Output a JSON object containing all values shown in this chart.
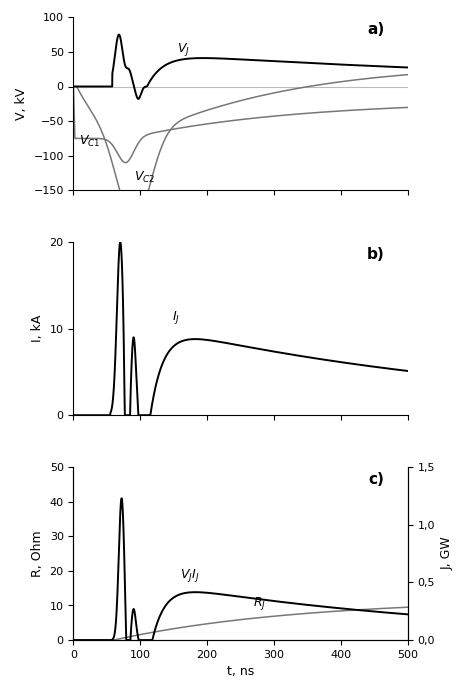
{
  "xlim": [
    0,
    500
  ],
  "panel_a": {
    "ylabel": "V, kV",
    "ylim": [
      -150,
      100
    ],
    "yticks": [
      -150,
      -100,
      -50,
      0,
      50,
      100
    ],
    "label": "a)"
  },
  "panel_b": {
    "ylabel": "I, kA",
    "ylim": [
      0,
      20
    ],
    "yticks": [
      0,
      10,
      20
    ],
    "label": "b)"
  },
  "panel_c": {
    "ylabel": "R, Ohm",
    "ylabel2": "J, GW",
    "ylim": [
      0,
      50
    ],
    "ylim2": [
      0,
      1.5
    ],
    "yticks": [
      0,
      10,
      20,
      30,
      40,
      50
    ],
    "yticks2": [
      0.0,
      0.5,
      1.0,
      1.5
    ],
    "yticklabels2": [
      "0,0",
      "0,5",
      "1,0",
      "1,5"
    ],
    "xlabel": "t, ns",
    "label": "c)"
  }
}
